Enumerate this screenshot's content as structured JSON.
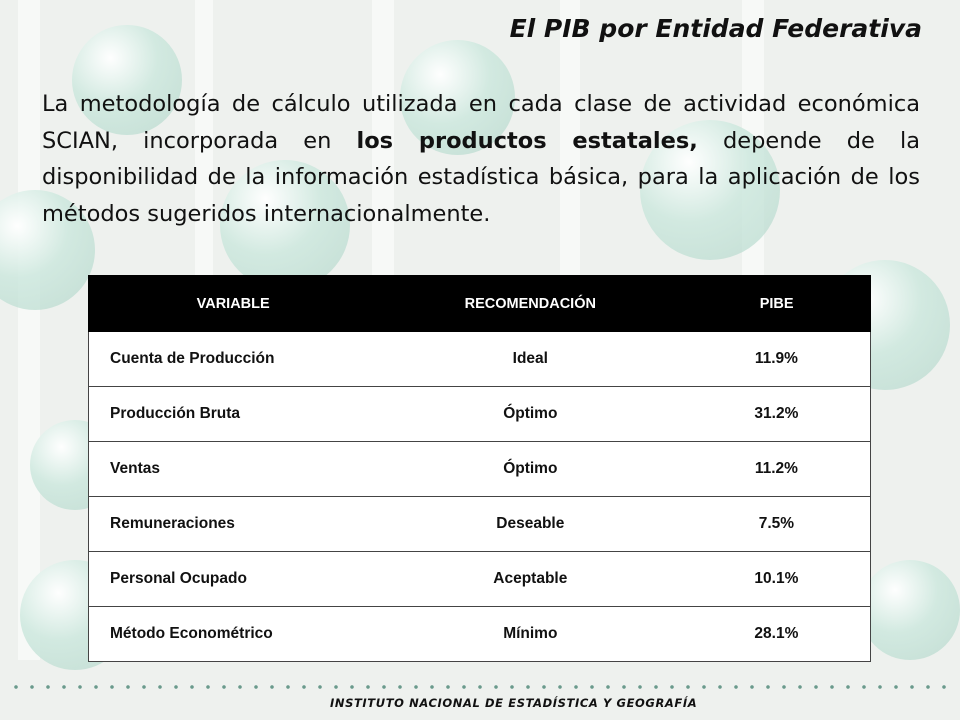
{
  "title": "El PIB por Entidad Federativa",
  "paragraph": {
    "before": "La metodología de cálculo utilizada en cada clase de actividad económica SCIAN, incorporada en ",
    "bold": "los productos estatales,",
    "after": " depende de la disponibilidad de la información estadística básica, para la aplicación de los métodos sugeridos internacionalmente."
  },
  "table": {
    "headers": [
      "VARIABLE",
      "RECOMENDACIÓN",
      "PIBE"
    ],
    "rows": [
      [
        "Cuenta de Producción",
        "Ideal",
        "11.9%"
      ],
      [
        "Producción Bruta",
        "Óptimo",
        "31.2%"
      ],
      [
        "Ventas",
        "Óptimo",
        "11.2%"
      ],
      [
        "Remuneraciones",
        "Deseable",
        "7.5%"
      ],
      [
        "Personal Ocupado",
        "Aceptable",
        "10.1%"
      ],
      [
        "Método Econométrico",
        "Mínimo",
        "28.1%"
      ]
    ]
  },
  "footer": "INSTITUTO NACIONAL DE ESTADÍSTICA Y GEOGRAFÍA"
}
